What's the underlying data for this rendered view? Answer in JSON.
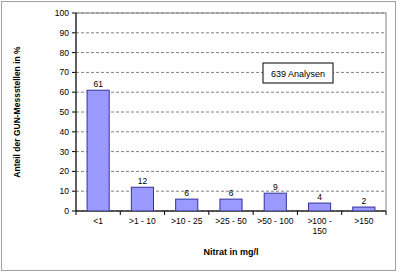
{
  "chart_data": {
    "type": "bar",
    "categories": [
      "<1",
      ">1 - 10",
      ">10 - 25",
      ">25 - 50",
      ">50 - 100",
      ">100 - 150",
      ">150"
    ],
    "values": [
      61,
      12,
      6,
      6,
      9,
      4,
      2
    ],
    "color": "#9999ff",
    "xlabel": "Nitrat in mg/l",
    "ylabel": "Anteil der GUN-Messstellen in %",
    "annotation": "639 Analysen",
    "ylim": [
      0,
      100
    ],
    "yticks": [
      0,
      10,
      20,
      30,
      40,
      50,
      60,
      70,
      80,
      90,
      100
    ],
    "grid": true,
    "data_labels": true
  }
}
